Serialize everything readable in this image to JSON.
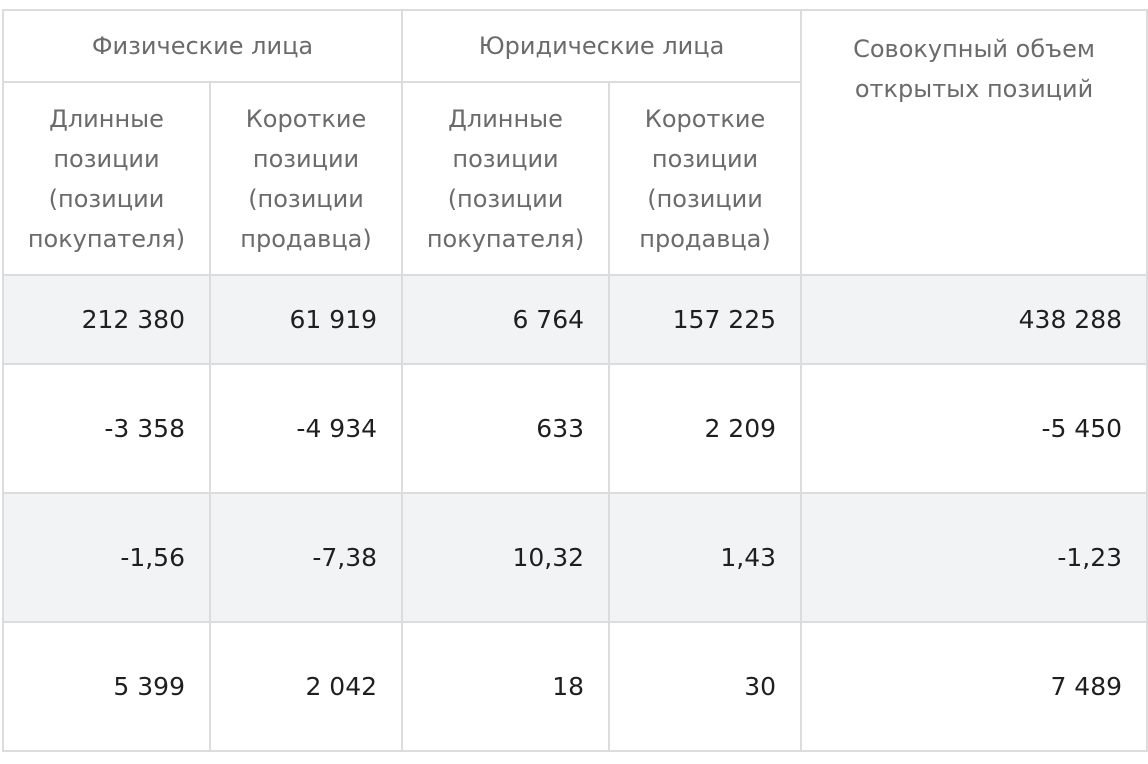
{
  "header": {
    "groups": [
      "Физические лица",
      "Юридические лица"
    ],
    "subheaders": [
      "Длинные позиции (позиции покупателя)",
      "Короткие позиции (позиции продавца)",
      "Длинные позиции (позиции покупателя)",
      "Короткие позиции (позиции продавца)"
    ],
    "total": "Совокупный объем открытых позиций"
  },
  "table": {
    "rows": [
      [
        "212 380",
        "61 919",
        "6 764",
        "157 225",
        "438 288"
      ],
      [
        "-3 358",
        "-4 934",
        "633",
        "2 209",
        "-5 450"
      ],
      [
        "-1,56",
        "-7,38",
        "10,32",
        "1,43",
        "-1,23"
      ],
      [
        "5 399",
        "2 042",
        "18",
        "30",
        "7 489"
      ]
    ]
  }
}
